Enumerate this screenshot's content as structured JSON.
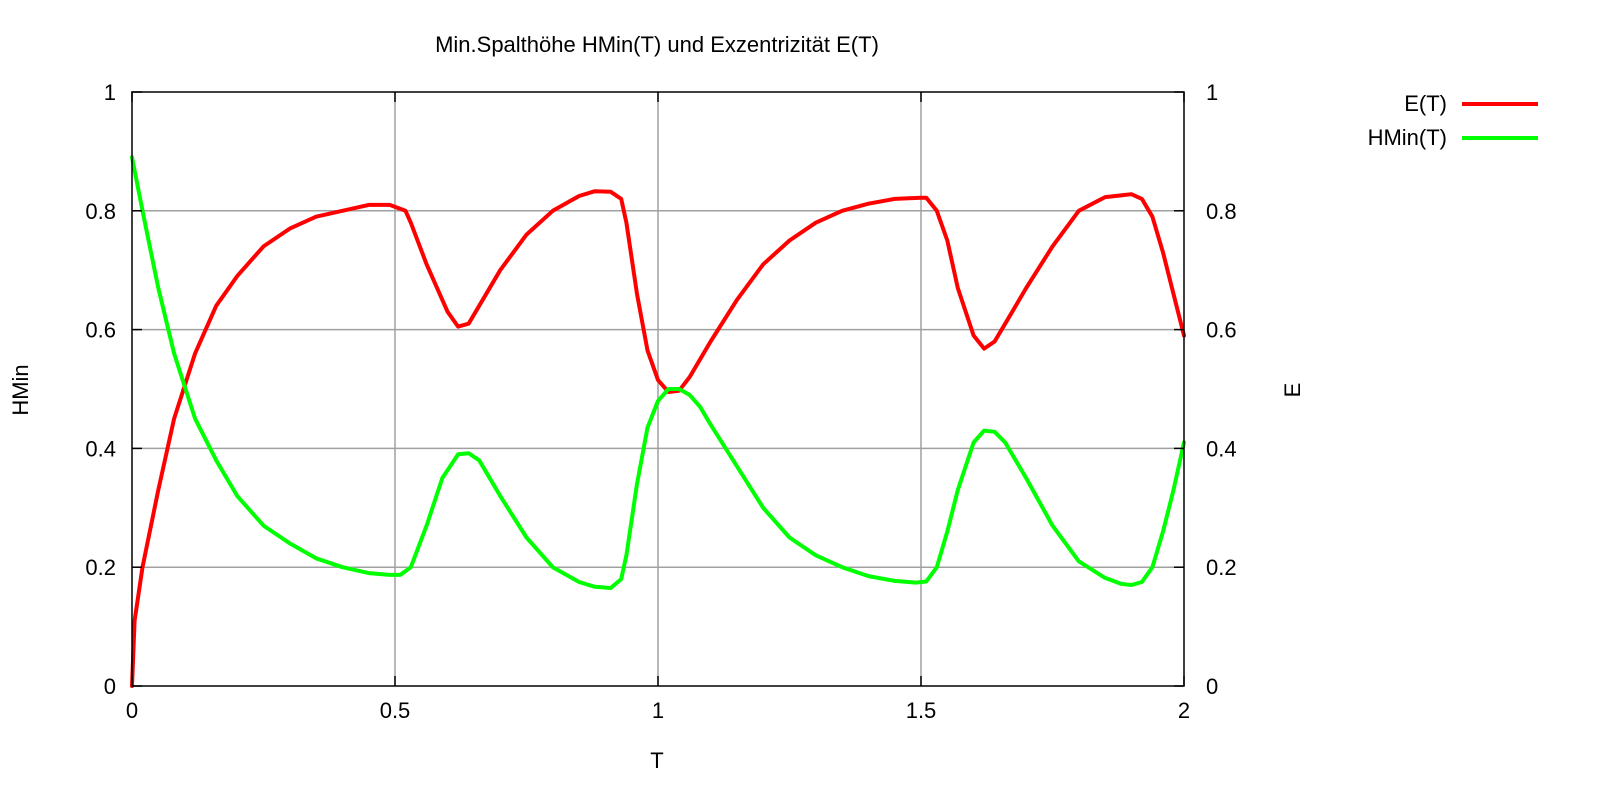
{
  "chart_data": {
    "type": "line",
    "title": "Min.Spalthöhe HMin(T) und Exzentrizität E(T)",
    "xlabel": "T",
    "ylabel": "HMin",
    "y2label": "E",
    "xlim": [
      0,
      2
    ],
    "ylim": [
      0,
      1
    ],
    "y2lim": [
      0,
      1
    ],
    "grid": true,
    "legend_position": "outside top-right",
    "x_ticks": [
      "0",
      "0.5",
      "1",
      "1.5",
      "2"
    ],
    "y_ticks": [
      "0",
      "0.2",
      "0.4",
      "0.6",
      "0.8",
      "1"
    ],
    "y2_ticks": [
      "0",
      "0.2",
      "0.4",
      "0.6",
      "0.8",
      "1"
    ],
    "series": [
      {
        "name": "E(T)",
        "color": "#ff0000",
        "x": [
          0,
          0.005,
          0.02,
          0.05,
          0.08,
          0.12,
          0.16,
          0.2,
          0.25,
          0.3,
          0.35,
          0.4,
          0.45,
          0.49,
          0.52,
          0.53,
          0.56,
          0.6,
          0.62,
          0.64,
          0.66,
          0.7,
          0.75,
          0.8,
          0.85,
          0.88,
          0.91,
          0.93,
          0.94,
          0.96,
          0.98,
          1.0,
          1.02,
          1.04,
          1.06,
          1.08,
          1.1,
          1.15,
          1.2,
          1.25,
          1.3,
          1.35,
          1.4,
          1.45,
          1.5,
          1.51,
          1.53,
          1.55,
          1.57,
          1.6,
          1.62,
          1.64,
          1.66,
          1.7,
          1.75,
          1.8,
          1.85,
          1.88,
          1.9,
          1.92,
          1.94,
          1.96,
          1.98,
          2.0
        ],
        "values": [
          0.0,
          0.11,
          0.2,
          0.33,
          0.45,
          0.56,
          0.64,
          0.69,
          0.74,
          0.77,
          0.79,
          0.8,
          0.81,
          0.81,
          0.8,
          0.78,
          0.71,
          0.63,
          0.605,
          0.61,
          0.64,
          0.7,
          0.76,
          0.8,
          0.825,
          0.833,
          0.832,
          0.82,
          0.78,
          0.66,
          0.565,
          0.515,
          0.495,
          0.497,
          0.52,
          0.55,
          0.58,
          0.65,
          0.71,
          0.75,
          0.78,
          0.8,
          0.812,
          0.82,
          0.822,
          0.822,
          0.8,
          0.75,
          0.67,
          0.59,
          0.568,
          0.58,
          0.61,
          0.67,
          0.74,
          0.8,
          0.823,
          0.826,
          0.828,
          0.82,
          0.79,
          0.73,
          0.66,
          0.59
        ]
      },
      {
        "name": "HMin(T)",
        "color": "#00ff00",
        "x": [
          0,
          0.02,
          0.05,
          0.08,
          0.12,
          0.16,
          0.2,
          0.25,
          0.3,
          0.35,
          0.4,
          0.45,
          0.49,
          0.51,
          0.53,
          0.56,
          0.59,
          0.62,
          0.64,
          0.66,
          0.7,
          0.75,
          0.8,
          0.85,
          0.88,
          0.91,
          0.93,
          0.94,
          0.96,
          0.98,
          1.0,
          1.02,
          1.04,
          1.06,
          1.08,
          1.1,
          1.15,
          1.2,
          1.25,
          1.3,
          1.35,
          1.4,
          1.45,
          1.49,
          1.51,
          1.53,
          1.55,
          1.57,
          1.6,
          1.62,
          1.64,
          1.66,
          1.7,
          1.75,
          1.8,
          1.85,
          1.88,
          1.9,
          1.92,
          1.94,
          1.96,
          1.98,
          2.0
        ],
        "values": [
          0.89,
          0.8,
          0.67,
          0.56,
          0.45,
          0.38,
          0.32,
          0.27,
          0.24,
          0.215,
          0.2,
          0.19,
          0.187,
          0.187,
          0.2,
          0.27,
          0.35,
          0.39,
          0.392,
          0.38,
          0.32,
          0.25,
          0.2,
          0.175,
          0.167,
          0.165,
          0.18,
          0.22,
          0.34,
          0.435,
          0.48,
          0.5,
          0.5,
          0.49,
          0.47,
          0.44,
          0.37,
          0.3,
          0.25,
          0.22,
          0.2,
          0.185,
          0.177,
          0.174,
          0.176,
          0.2,
          0.26,
          0.33,
          0.41,
          0.43,
          0.428,
          0.41,
          0.35,
          0.27,
          0.21,
          0.182,
          0.172,
          0.17,
          0.175,
          0.2,
          0.26,
          0.33,
          0.41
        ]
      }
    ]
  }
}
